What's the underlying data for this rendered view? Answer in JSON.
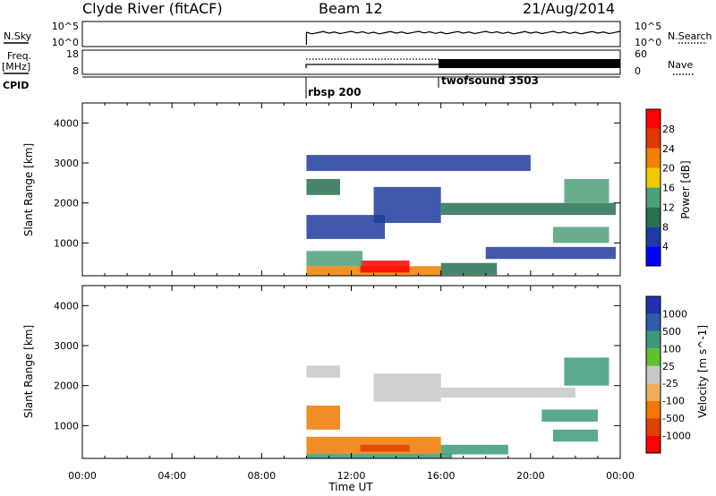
{
  "header": {
    "station": "Clyde River (fitACF)",
    "beam": "Beam 12",
    "date": "21/Aug/2014"
  },
  "panels": {
    "nsky": {
      "left_label": "N.Sky",
      "left_ticks": [
        "10^5",
        "10^0"
      ],
      "right_ticks": [
        "10^5",
        "10^0"
      ],
      "right_label": "N.Search"
    },
    "freq": {
      "left_label": "Freq.",
      "left_unit": "[MHz]",
      "left_ticks": [
        "18",
        "8"
      ],
      "right_ticks": [
        "60",
        "0"
      ],
      "right_label": "Nave"
    },
    "cpid": {
      "label": "CPID",
      "programs": [
        {
          "name": "rbsp 200",
          "start_hour": 10.0
        },
        {
          "name": "twofsound 3503",
          "start_hour": 16.0
        }
      ]
    }
  },
  "chart_data": [
    {
      "type": "heatmap",
      "title": "",
      "xlabel": "Time UT",
      "ylabel": "Slant Range [km]",
      "xlim": [
        "00:00",
        "24:00"
      ],
      "ylim": [
        180,
        4500
      ],
      "x_ticks": [
        "00:00",
        "04:00",
        "08:00",
        "12:00",
        "16:00",
        "20:00",
        "00:00"
      ],
      "y_ticks": [
        1000,
        2000,
        3000,
        4000
      ],
      "colorbar": {
        "label": "Power [dB]",
        "ticks": [
          "28",
          "24",
          "20",
          "16",
          "12",
          "8",
          "4"
        ],
        "range": [
          0,
          32
        ]
      },
      "regions": [
        {
          "t": [
            10.0,
            16.0
          ],
          "range_km": [
            180,
            420
          ],
          "value": 22
        },
        {
          "t": [
            12.4,
            14.6
          ],
          "range_km": [
            260,
            560
          ],
          "value": 29
        },
        {
          "t": [
            10.0,
            12.5
          ],
          "range_km": [
            420,
            800
          ],
          "value": 13
        },
        {
          "t": [
            16.0,
            18.5
          ],
          "range_km": [
            200,
            500
          ],
          "value": 11
        },
        {
          "t": [
            10.0,
            13.5
          ],
          "range_km": [
            1100,
            1700
          ],
          "value": 6
        },
        {
          "t": [
            10.0,
            11.5
          ],
          "range_km": [
            2200,
            2600
          ],
          "value": 10
        },
        {
          "t": [
            13.0,
            16.0
          ],
          "range_km": [
            1500,
            2400
          ],
          "value": 7
        },
        {
          "t": [
            16.0,
            23.8
          ],
          "range_km": [
            1700,
            2000
          ],
          "value": 8
        },
        {
          "t": [
            21.0,
            23.5
          ],
          "range_km": [
            1000,
            1400
          ],
          "value": 13
        },
        {
          "t": [
            21.5,
            23.5
          ],
          "range_km": [
            2000,
            2600
          ],
          "value": 15
        },
        {
          "t": [
            18.0,
            23.8
          ],
          "range_km": [
            600,
            900
          ],
          "value": 5
        },
        {
          "t": [
            10.0,
            20.0
          ],
          "range_km": [
            2800,
            3200
          ],
          "value": 5
        }
      ]
    },
    {
      "type": "heatmap",
      "title": "",
      "xlabel": "Time UT",
      "ylabel": "Slant Range [km]",
      "xlim": [
        "00:00",
        "24:00"
      ],
      "ylim": [
        180,
        4500
      ],
      "x_ticks": [
        "00:00",
        "04:00",
        "08:00",
        "12:00",
        "16:00",
        "20:00",
        "00:00"
      ],
      "y_ticks": [
        1000,
        2000,
        3000,
        4000
      ],
      "colorbar": {
        "label": "Velocity [m s^-1]",
        "ticks": [
          "1000",
          "500",
          "100",
          "25",
          "-25",
          "-100",
          "-500",
          "-1000"
        ]
      },
      "regions": [
        {
          "t": [
            10.0,
            16.5
          ],
          "range_km": [
            180,
            300
          ],
          "value": 150
        },
        {
          "t": [
            10.0,
            16.0
          ],
          "range_km": [
            300,
            720
          ],
          "value": -300
        },
        {
          "t": [
            12.4,
            14.6
          ],
          "range_km": [
            350,
            520
          ],
          "value": -600
        },
        {
          "t": [
            10.0,
            11.5
          ],
          "range_km": [
            900,
            1500
          ],
          "value": -300
        },
        {
          "t": [
            10.0,
            11.5
          ],
          "range_km": [
            2200,
            2500
          ],
          "value": 0
        },
        {
          "t": [
            13.0,
            16.0
          ],
          "range_km": [
            1600,
            2300
          ],
          "value": 0
        },
        {
          "t": [
            16.0,
            22.0
          ],
          "range_km": [
            1700,
            1950
          ],
          "value": 0
        },
        {
          "t": [
            20.5,
            23.0
          ],
          "range_km": [
            1100,
            1400
          ],
          "value": 200
        },
        {
          "t": [
            21.5,
            23.5
          ],
          "range_km": [
            2000,
            2700
          ],
          "value": 400
        },
        {
          "t": [
            16.0,
            19.0
          ],
          "range_km": [
            280,
            520
          ],
          "value": 150
        },
        {
          "t": [
            21.0,
            23.0
          ],
          "range_km": [
            600,
            900
          ],
          "value": 150
        }
      ]
    }
  ],
  "colors": {
    "power": [
      "#0000ff",
      "#1e3c9f",
      "#287050",
      "#4ea078",
      "#f0c800",
      "#f08000",
      "#e03800",
      "#ff0000"
    ],
    "velocity": [
      "#ff0000",
      "#e04000",
      "#f07800",
      "#f0b060",
      "#c8c8c8",
      "#60c030",
      "#3c9a78",
      "#2e5ea8",
      "#2030b0"
    ]
  }
}
